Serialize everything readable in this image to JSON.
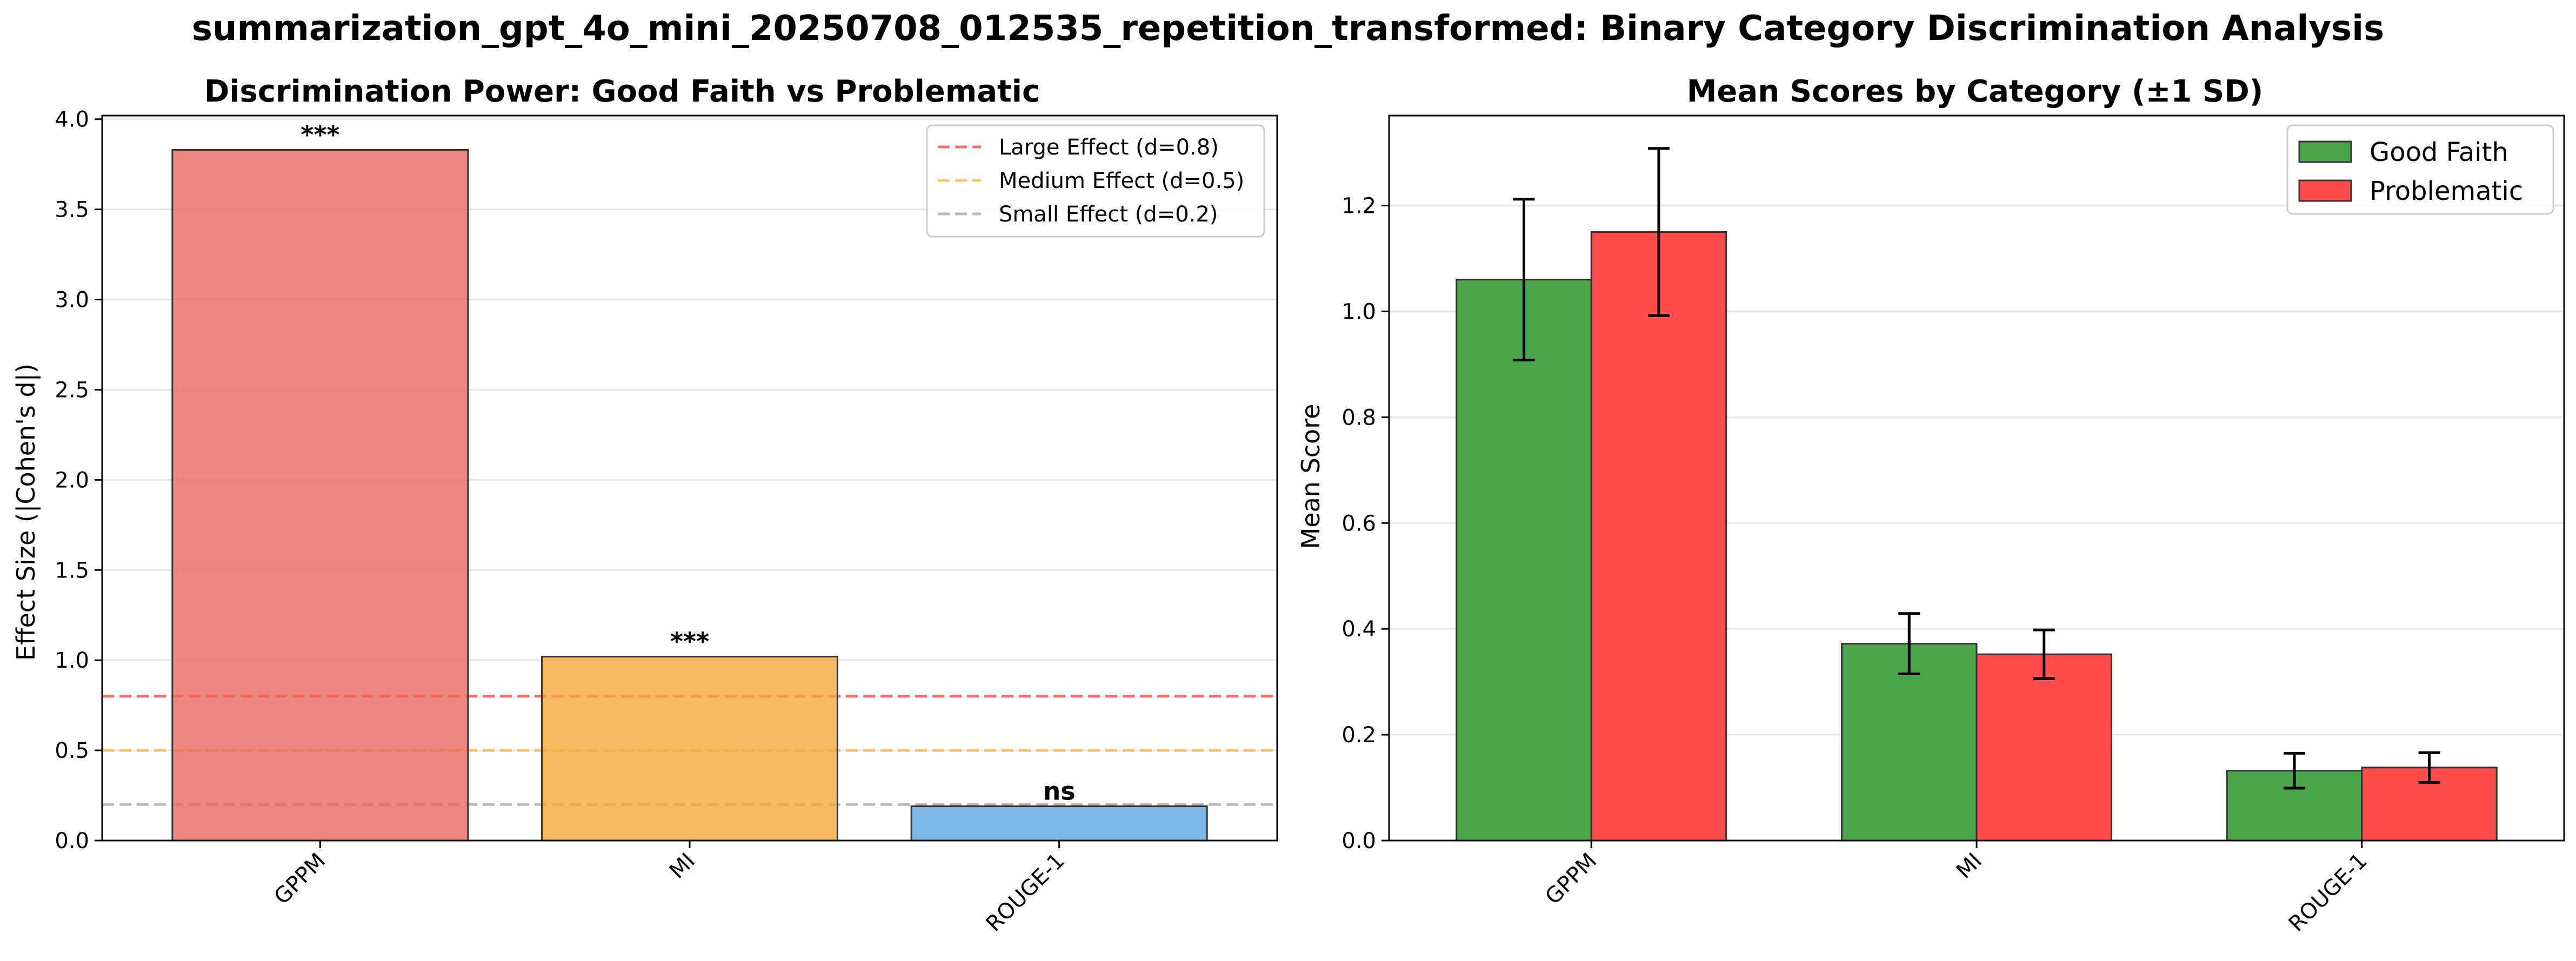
{
  "suptitle": "summarization_gpt_4o_mini_20250708_012535_repetition_transformed: Binary Category Discrimination Analysis",
  "colors": {
    "gppm": "#e8685b",
    "mi": "#f3a93a",
    "rouge": "#5aa6dc",
    "good_faith": "#4aa54a",
    "problematic": "#ff4c4c",
    "large_line": "#ff6b6b",
    "medium_line": "#f6c46b",
    "small_line": "#b9b9b9",
    "grid": "#e6e6e6",
    "edge": "#333333"
  },
  "chart_data": [
    {
      "type": "bar",
      "title": "Discrimination Power: Good Faith vs Problematic",
      "xlabel": "",
      "ylabel": "Effect Size (|Cohen's d|)",
      "categories": [
        "GPPM",
        "MI",
        "ROUGE-1"
      ],
      "values": [
        3.83,
        1.02,
        0.19
      ],
      "significance": [
        "***",
        "***",
        "ns"
      ],
      "bar_colors": [
        "#e8685b",
        "#f3a93a",
        "#5aa6dc"
      ],
      "ylim": [
        0,
        4.02
      ],
      "yticks": [
        "0.0",
        "0.5",
        "1.0",
        "1.5",
        "2.0",
        "2.5",
        "3.0",
        "3.5",
        "4.0"
      ],
      "ytick_values": [
        0,
        0.5,
        1.0,
        1.5,
        2.0,
        2.5,
        3.0,
        3.5,
        4.0
      ],
      "reference_lines": [
        {
          "label": "Large Effect (d=0.8)",
          "value": 0.8,
          "color": "#ff6b6b"
        },
        {
          "label": "Medium Effect (d=0.5)",
          "value": 0.5,
          "color": "#f6c46b"
        },
        {
          "label": "Small Effect (d=0.2)",
          "value": 0.2,
          "color": "#b9b9b9"
        }
      ],
      "grid": true,
      "legend_position": "top-right"
    },
    {
      "type": "bar",
      "title": "Mean Scores by Category (±1 SD)",
      "xlabel": "",
      "ylabel": "Mean Score",
      "categories": [
        "GPPM",
        "MI",
        "ROUGE-1"
      ],
      "series": [
        {
          "name": "Good Faith",
          "values": [
            1.06,
            0.372,
            0.132
          ],
          "sd": [
            0.152,
            0.057,
            0.033
          ],
          "color": "#4aa54a"
        },
        {
          "name": "Problematic",
          "values": [
            1.15,
            0.352,
            0.138
          ],
          "sd": [
            0.158,
            0.046,
            0.028
          ],
          "color": "#ff4c4c"
        }
      ],
      "ylim": [
        0,
        1.37
      ],
      "yticks": [
        "0.0",
        "0.2",
        "0.4",
        "0.6",
        "0.8",
        "1.0",
        "1.2"
      ],
      "ytick_values": [
        0,
        0.2,
        0.4,
        0.6,
        0.8,
        1.0,
        1.2
      ],
      "grid": true,
      "legend_position": "top-right"
    }
  ]
}
